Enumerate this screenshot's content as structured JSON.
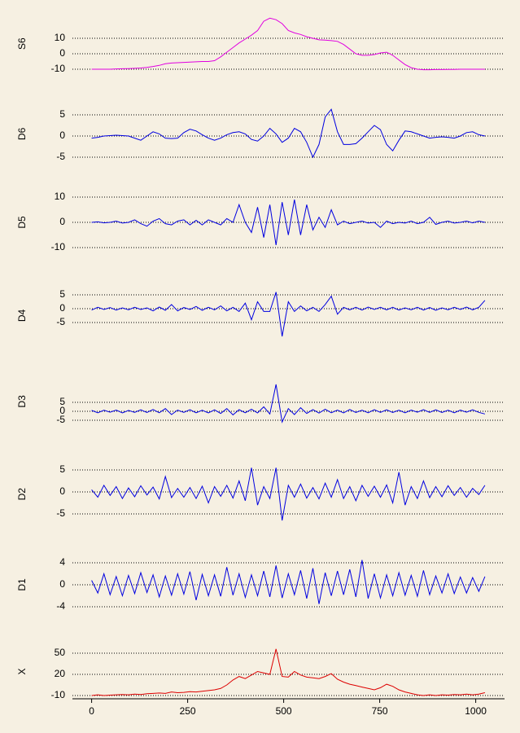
{
  "chart_data": [
    {
      "type": "line",
      "ylabel": "S6",
      "color": "#e000e0",
      "grid": true,
      "ylim": [
        -12,
        25
      ],
      "yticks": [
        -10,
        0,
        10
      ],
      "x": [
        0,
        16,
        32,
        48,
        64,
        80,
        96,
        112,
        128,
        144,
        160,
        176,
        192,
        208,
        224,
        240,
        256,
        272,
        288,
        304,
        320,
        336,
        352,
        368,
        384,
        400,
        416,
        432,
        448,
        464,
        480,
        496,
        512,
        528,
        544,
        560,
        576,
        592,
        608,
        624,
        640,
        656,
        672,
        688,
        704,
        720,
        736,
        752,
        768,
        784,
        800,
        816,
        832,
        848,
        864,
        880,
        896,
        912,
        928,
        944,
        960,
        976,
        992,
        1008,
        1024
      ],
      "values": [
        -10,
        -10,
        -10,
        -10,
        -9.8,
        -9.7,
        -9.6,
        -9.4,
        -9.2,
        -8.8,
        -8.2,
        -7.5,
        -6.5,
        -6,
        -5.8,
        -5.6,
        -5.4,
        -5.2,
        -5,
        -5,
        -4.5,
        -2,
        1,
        4,
        7,
        9.5,
        12,
        15,
        21,
        23,
        22,
        19.5,
        15,
        13.5,
        12.5,
        11,
        10,
        9,
        8.8,
        8.5,
        8,
        6,
        3,
        0,
        -1,
        -1,
        -0.5,
        0.5,
        1,
        -1,
        -4,
        -7,
        -9,
        -10,
        -10.3,
        -10.3,
        -10.2,
        -10.2,
        -10.1,
        -10.1,
        -10,
        -10,
        -10,
        -10,
        -10
      ]
    },
    {
      "type": "line",
      "ylabel": "D6",
      "color": "#0000e0",
      "grid": true,
      "ylim": [
        -6,
        7
      ],
      "yticks": [
        -5,
        0,
        5
      ],
      "x": [
        0,
        16,
        32,
        48,
        64,
        80,
        96,
        112,
        128,
        144,
        160,
        176,
        192,
        208,
        224,
        240,
        256,
        272,
        288,
        304,
        320,
        336,
        352,
        368,
        384,
        400,
        416,
        432,
        448,
        464,
        480,
        496,
        512,
        528,
        544,
        560,
        576,
        592,
        608,
        624,
        640,
        656,
        672,
        688,
        704,
        720,
        736,
        752,
        768,
        784,
        800,
        816,
        832,
        848,
        864,
        880,
        896,
        912,
        928,
        944,
        960,
        976,
        992,
        1008,
        1024
      ],
      "values": [
        -0.5,
        -0.3,
        0,
        0.1,
        0.2,
        0.1,
        0,
        -0.5,
        -1,
        0,
        1,
        0.5,
        -0.5,
        -0.6,
        -0.5,
        0.8,
        1.6,
        1.2,
        0.3,
        -0.5,
        -1,
        -0.5,
        0.3,
        0.8,
        1,
        0.5,
        -0.8,
        -1.2,
        0,
        1.8,
        0.5,
        -1.5,
        -0.5,
        1.8,
        1,
        -1.5,
        -5,
        -2,
        4.5,
        6.3,
        1,
        -2,
        -2,
        -1.8,
        -0.5,
        1,
        2.5,
        1.5,
        -2,
        -3.5,
        -1,
        1.2,
        1,
        0.5,
        0,
        -0.5,
        -0.3,
        -0.2,
        -0.3,
        -0.5,
        0,
        0.8,
        1,
        0.3,
        0
      ]
    },
    {
      "type": "line",
      "ylabel": "D5",
      "color": "#0000e0",
      "grid": true,
      "ylim": [
        -11,
        11
      ],
      "yticks": [
        -10,
        0,
        10
      ],
      "x": [
        0,
        16,
        32,
        48,
        64,
        80,
        96,
        112,
        128,
        144,
        160,
        176,
        192,
        208,
        224,
        240,
        256,
        272,
        288,
        304,
        320,
        336,
        352,
        368,
        384,
        400,
        416,
        432,
        448,
        464,
        480,
        496,
        512,
        528,
        544,
        560,
        576,
        592,
        608,
        624,
        640,
        656,
        672,
        688,
        704,
        720,
        736,
        752,
        768,
        784,
        800,
        816,
        832,
        848,
        864,
        880,
        896,
        912,
        928,
        944,
        960,
        976,
        992,
        1008,
        1024
      ],
      "values": [
        0,
        0.2,
        -0.2,
        0,
        0.5,
        -0.3,
        0,
        1,
        -0.5,
        -1.5,
        0.5,
        1.5,
        -0.5,
        -1,
        0.5,
        1,
        -1,
        0.8,
        -1,
        1,
        0,
        -1,
        1.5,
        0,
        7,
        0,
        -4,
        6,
        -6,
        7,
        -9,
        8,
        -5,
        9,
        -5,
        7,
        -3,
        2,
        -2,
        5,
        -1,
        0.5,
        -0.5,
        0,
        0.5,
        -0.3,
        0,
        -2,
        0.5,
        -0.5,
        0,
        -0.3,
        0.5,
        -0.5,
        0,
        2,
        -0.8,
        0,
        0.5,
        -0.3,
        0,
        0.5,
        -0.2,
        0.5,
        0
      ]
    },
    {
      "type": "line",
      "ylabel": "D4",
      "color": "#0000e0",
      "grid": true,
      "ylim": [
        -11,
        6
      ],
      "yticks": [
        -5,
        0,
        5
      ],
      "x": [
        0,
        16,
        32,
        48,
        64,
        80,
        96,
        112,
        128,
        144,
        160,
        176,
        192,
        208,
        224,
        240,
        256,
        272,
        288,
        304,
        320,
        336,
        352,
        368,
        384,
        400,
        416,
        432,
        448,
        464,
        480,
        496,
        512,
        528,
        544,
        560,
        576,
        592,
        608,
        624,
        640,
        656,
        672,
        688,
        704,
        720,
        736,
        752,
        768,
        784,
        800,
        816,
        832,
        848,
        864,
        880,
        896,
        912,
        928,
        944,
        960,
        976,
        992,
        1008,
        1024
      ],
      "values": [
        -0.5,
        0.5,
        -0.3,
        0.4,
        -0.5,
        0.3,
        -0.4,
        0.5,
        -0.3,
        0.3,
        -0.8,
        0.6,
        -0.6,
        1.5,
        -0.8,
        0.4,
        -0.3,
        0.8,
        -0.6,
        0.5,
        -0.4,
        1,
        -0.8,
        0.5,
        -1,
        2,
        -4,
        2.5,
        -1,
        -1,
        6,
        -10,
        2.5,
        -1,
        1,
        -0.8,
        0.5,
        -1,
        1.5,
        4.5,
        -2,
        0.5,
        -0.4,
        0.5,
        -0.5,
        0.6,
        -0.3,
        0.5,
        -0.4,
        0.5,
        -0.5,
        0.3,
        -0.4,
        0.5,
        -0.5,
        0.4,
        -0.6,
        0.3,
        -0.4,
        0.5,
        -0.3,
        0.6,
        -0.4,
        0.5,
        3
      ]
    },
    {
      "type": "line",
      "ylabel": "D3",
      "color": "#0000e0",
      "grid": true,
      "ylim": [
        -9,
        20
      ],
      "yticks": [
        -5,
        0,
        5
      ],
      "x": [
        0,
        16,
        32,
        48,
        64,
        80,
        96,
        112,
        128,
        144,
        160,
        176,
        192,
        208,
        224,
        240,
        256,
        272,
        288,
        304,
        320,
        336,
        352,
        368,
        384,
        400,
        416,
        432,
        448,
        464,
        480,
        496,
        512,
        528,
        544,
        560,
        576,
        592,
        608,
        624,
        640,
        656,
        672,
        688,
        704,
        720,
        736,
        752,
        768,
        784,
        800,
        816,
        832,
        848,
        864,
        880,
        896,
        912,
        928,
        944,
        960,
        976,
        992,
        1008,
        1024
      ],
      "values": [
        0.5,
        -0.8,
        0.6,
        -0.5,
        0.7,
        -0.9,
        0.5,
        -0.6,
        0.8,
        -0.7,
        1,
        -0.8,
        1.5,
        -1.8,
        0.7,
        -0.6,
        0.9,
        -0.8,
        0.6,
        -0.9,
        0.8,
        -1.2,
        1.5,
        -2,
        0.9,
        -0.8,
        1.2,
        -0.9,
        2.5,
        -1.5,
        15,
        -6,
        1.5,
        -1.8,
        2,
        -1.2,
        0.9,
        -1,
        1.2,
        -0.8,
        0.7,
        -0.9,
        1,
        -0.7,
        0.6,
        -0.8,
        0.9,
        -0.6,
        0.8,
        -0.7,
        0.6,
        -0.8,
        0.7,
        -0.5,
        0.9,
        -0.6,
        0.8,
        -0.7,
        0.6,
        -0.8,
        0.7,
        -0.5,
        0.8,
        -0.6,
        -1.5
      ]
    },
    {
      "type": "line",
      "ylabel": "D2",
      "color": "#0000e0",
      "grid": true,
      "ylim": [
        -6.5,
        5.5
      ],
      "yticks": [
        -5,
        0,
        5
      ],
      "x": [
        0,
        16,
        32,
        48,
        64,
        80,
        96,
        112,
        128,
        144,
        160,
        176,
        192,
        208,
        224,
        240,
        256,
        272,
        288,
        304,
        320,
        336,
        352,
        368,
        384,
        400,
        416,
        432,
        448,
        464,
        480,
        496,
        512,
        528,
        544,
        560,
        576,
        592,
        608,
        624,
        640,
        656,
        672,
        688,
        704,
        720,
        736,
        752,
        768,
        784,
        800,
        816,
        832,
        848,
        864,
        880,
        896,
        912,
        928,
        944,
        960,
        976,
        992,
        1008,
        1024
      ],
      "values": [
        0.5,
        -1.2,
        1.5,
        -0.8,
        1.2,
        -1.5,
        0.9,
        -1.1,
        1.4,
        -0.7,
        1.1,
        -1.6,
        3.5,
        -1.3,
        0.8,
        -1.2,
        1,
        -1.5,
        1.3,
        -2.5,
        1.2,
        -1,
        1.5,
        -1.4,
        2.5,
        -2,
        5.5,
        -3,
        1.2,
        -1.5,
        5.5,
        -6.5,
        1.5,
        -1.2,
        1.8,
        -1.4,
        1,
        -1.6,
        2,
        -1.2,
        2.8,
        -1.5,
        1.2,
        -2,
        1.5,
        -1,
        1.3,
        -1.2,
        1.6,
        -2.5,
        4.5,
        -3,
        1.2,
        -1.5,
        2.5,
        -1.3,
        1.2,
        -1.1,
        1.4,
        -0.8,
        1,
        -1.2,
        0.8,
        -0.6,
        1.5
      ]
    },
    {
      "type": "line",
      "ylabel": "D1",
      "color": "#0000e0",
      "grid": true,
      "ylim": [
        -4.5,
        4.5
      ],
      "yticks": [
        -4,
        0,
        4
      ],
      "x": [
        0,
        16,
        32,
        48,
        64,
        80,
        96,
        112,
        128,
        144,
        160,
        176,
        192,
        208,
        224,
        240,
        256,
        272,
        288,
        304,
        320,
        336,
        352,
        368,
        384,
        400,
        416,
        432,
        448,
        464,
        480,
        496,
        512,
        528,
        544,
        560,
        576,
        592,
        608,
        624,
        640,
        656,
        672,
        688,
        704,
        720,
        736,
        752,
        768,
        784,
        800,
        816,
        832,
        848,
        864,
        880,
        896,
        912,
        928,
        944,
        960,
        976,
        992,
        1008,
        1024
      ],
      "values": [
        0.8,
        -1.5,
        2,
        -1.8,
        1.5,
        -2,
        1.7,
        -1.6,
        2.2,
        -1.4,
        1.8,
        -2.2,
        1.6,
        -1.9,
        2,
        -1.7,
        2.4,
        -2.8,
        1.9,
        -2,
        1.8,
        -2.1,
        3.2,
        -1.9,
        2,
        -2.3,
        1.8,
        -2,
        2.5,
        -2.2,
        3.5,
        -2.4,
        2,
        -1.8,
        2.6,
        -2.5,
        3,
        -3.5,
        2.2,
        -2,
        2.5,
        -1.8,
        2.8,
        -2.2,
        4.5,
        -2.5,
        2,
        -2.4,
        1.8,
        -2,
        2.2,
        -1.9,
        1.7,
        -2.1,
        2.6,
        -1.8,
        1.6,
        -1.5,
        2,
        -1.6,
        1.4,
        -1.5,
        1.3,
        -1.2,
        1.5
      ]
    },
    {
      "type": "line",
      "ylabel": "X",
      "color": "#dd0000",
      "grid": true,
      "ylim": [
        -12,
        60
      ],
      "yticks": [
        -10,
        20,
        50
      ],
      "xlim": [
        -50,
        1075
      ],
      "xticks": [
        0,
        250,
        500,
        750,
        1000
      ],
      "x": [
        0,
        16,
        32,
        48,
        64,
        80,
        96,
        112,
        128,
        144,
        160,
        176,
        192,
        208,
        224,
        240,
        256,
        272,
        288,
        304,
        320,
        336,
        352,
        368,
        384,
        400,
        416,
        432,
        448,
        464,
        480,
        496,
        512,
        528,
        544,
        560,
        576,
        592,
        608,
        624,
        640,
        656,
        672,
        688,
        704,
        720,
        736,
        752,
        768,
        784,
        800,
        816,
        832,
        848,
        864,
        880,
        896,
        912,
        928,
        944,
        960,
        976,
        992,
        1008,
        1024
      ],
      "values": [
        -10,
        -9,
        -10,
        -9.5,
        -9,
        -8.5,
        -9,
        -8,
        -8.5,
        -7.5,
        -7,
        -6.5,
        -7,
        -5,
        -6,
        -5.5,
        -4.5,
        -5,
        -4,
        -3,
        -2,
        0,
        5,
        12,
        17,
        14,
        19,
        24,
        22,
        20,
        56,
        17,
        16,
        24,
        19,
        16,
        15,
        14,
        17,
        21,
        13,
        9,
        6,
        4,
        2,
        0,
        -2,
        1,
        6,
        3,
        -2,
        -5,
        -7,
        -9,
        -10,
        -9,
        -10,
        -9,
        -9.5,
        -8.5,
        -9,
        -8,
        -9,
        -8,
        -6
      ]
    }
  ]
}
